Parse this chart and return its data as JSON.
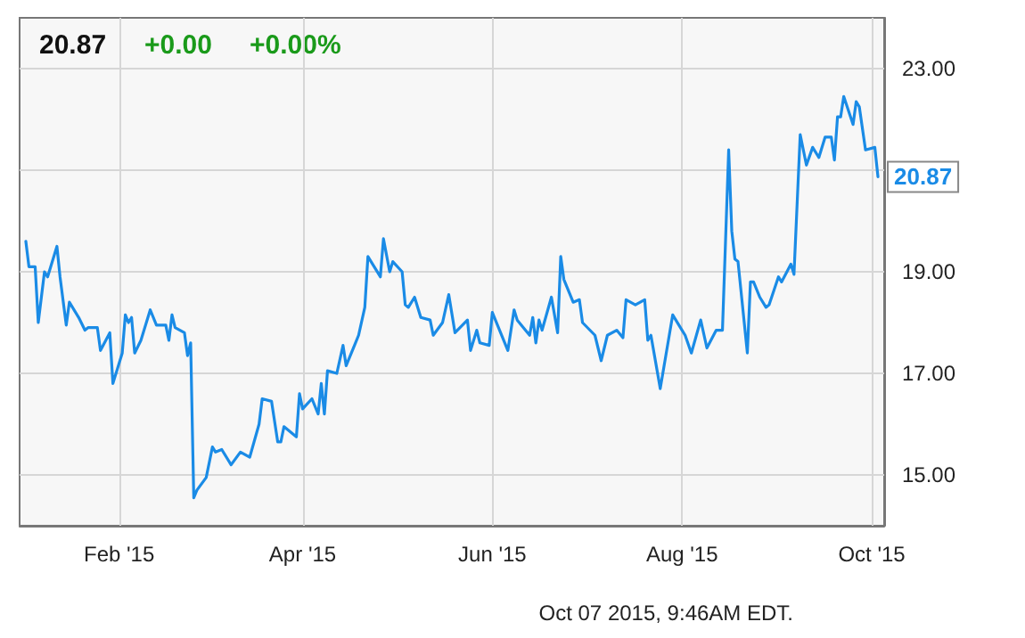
{
  "chart_data": {
    "type": "line",
    "annotations": [
      "20.87",
      "+0.00",
      "+0.00%",
      "Oct 07 2015, 9:46AM EDT.",
      {
        "text": "20.87",
        "x": "2015-10-03",
        "y": 20.87
      }
    ],
    "x": [
      "2015-01-02",
      "2015-01-03",
      "2015-01-05",
      "2015-01-06",
      "2015-01-08",
      "2015-01-09",
      "2015-01-12",
      "2015-01-13",
      "2015-01-15",
      "2015-01-16",
      "2015-01-19",
      "2015-01-21",
      "2015-01-22",
      "2015-01-25",
      "2015-01-26",
      "2015-01-29",
      "2015-01-30",
      "2015-02-02",
      "2015-02-03",
      "2015-02-04",
      "2015-02-05",
      "2015-02-06",
      "2015-02-08",
      "2015-02-11",
      "2015-02-13",
      "2015-02-16",
      "2015-02-17",
      "2015-02-18",
      "2015-02-19",
      "2015-02-22",
      "2015-02-23",
      "2015-02-24",
      "2015-02-25",
      "2015-02-26",
      "2015-03-01",
      "2015-03-03",
      "2015-03-04",
      "2015-03-06",
      "2015-03-09",
      "2015-03-12",
      "2015-03-15",
      "2015-03-18",
      "2015-03-19",
      "2015-03-22",
      "2015-03-24",
      "2015-03-25",
      "2015-03-26",
      "2015-03-30",
      "2015-03-31",
      "2015-04-01",
      "2015-04-04",
      "2015-04-06",
      "2015-04-07",
      "2015-04-08",
      "2015-04-09",
      "2015-04-12",
      "2015-04-14",
      "2015-04-15",
      "2015-04-18",
      "2015-04-19",
      "2015-04-21",
      "2015-04-22",
      "2015-04-26",
      "2015-04-27",
      "2015-04-29",
      "2015-04-30",
      "2015-05-03",
      "2015-05-04",
      "2015-05-05",
      "2015-05-07",
      "2015-05-09",
      "2015-05-12",
      "2015-05-13",
      "2015-05-16",
      "2015-05-18",
      "2015-05-20",
      "2015-05-24",
      "2015-05-25",
      "2015-05-27",
      "2015-05-28",
      "2015-05-31",
      "2015-06-01",
      "2015-06-06",
      "2015-06-08",
      "2015-06-09",
      "2015-06-13",
      "2015-06-14",
      "2015-06-15",
      "2015-06-16",
      "2015-06-17",
      "2015-06-20",
      "2015-06-22",
      "2015-06-23",
      "2015-06-24",
      "2015-06-27",
      "2015-06-29",
      "2015-06-30",
      "2015-07-04",
      "2015-07-06",
      "2015-07-08",
      "2015-07-11",
      "2015-07-13",
      "2015-07-14",
      "2015-07-17",
      "2015-07-20",
      "2015-07-21",
      "2015-07-22",
      "2015-07-25",
      "2015-07-29",
      "2015-07-31",
      "2015-08-02",
      "2015-08-04",
      "2015-08-07",
      "2015-08-09",
      "2015-08-12",
      "2015-08-14",
      "2015-08-16",
      "2015-08-17",
      "2015-08-18",
      "2015-08-19",
      "2015-08-22",
      "2015-08-23",
      "2015-08-24",
      "2015-08-26",
      "2015-08-28",
      "2015-08-29",
      "2015-09-01",
      "2015-09-02",
      "2015-09-05",
      "2015-09-06",
      "2015-09-08",
      "2015-09-10",
      "2015-09-12",
      "2015-09-14",
      "2015-09-16",
      "2015-09-18",
      "2015-09-19",
      "2015-09-20",
      "2015-09-21",
      "2015-09-22",
      "2015-09-25",
      "2015-09-26",
      "2015-09-27",
      "2015-09-29",
      "2015-10-02",
      "2015-10-03"
    ],
    "series": [
      {
        "color": "#1a8be6",
        "values": [
          19.6,
          19.1,
          19.1,
          18.0,
          19.0,
          18.9,
          19.5,
          18.9,
          17.95,
          18.4,
          18.1,
          17.85,
          17.9,
          17.9,
          17.45,
          17.8,
          16.8,
          17.4,
          18.15,
          18.0,
          18.1,
          17.4,
          17.65,
          18.25,
          17.95,
          17.95,
          17.65,
          18.15,
          17.9,
          17.8,
          17.35,
          17.6,
          14.55,
          14.7,
          14.95,
          15.55,
          15.45,
          15.5,
          15.2,
          15.45,
          15.35,
          16.0,
          16.5,
          16.45,
          15.65,
          15.65,
          15.95,
          15.75,
          16.6,
          16.3,
          16.5,
          16.2,
          16.8,
          16.2,
          17.05,
          17.0,
          17.55,
          17.15,
          17.6,
          17.75,
          18.3,
          19.3,
          18.9,
          19.65,
          19.0,
          19.2,
          19.0,
          18.35,
          18.3,
          18.5,
          18.1,
          18.05,
          17.75,
          18.0,
          18.55,
          17.8,
          18.05,
          17.45,
          17.85,
          17.6,
          17.55,
          18.2,
          17.45,
          18.25,
          18.05,
          17.75,
          18.1,
          17.6,
          18.05,
          17.85,
          18.5,
          17.8,
          19.3,
          18.85,
          18.4,
          18.45,
          18.0,
          17.75,
          17.25,
          17.75,
          17.85,
          17.7,
          18.45,
          18.35,
          18.45,
          17.65,
          17.75,
          16.7,
          18.15,
          17.95,
          17.75,
          17.4,
          18.05,
          17.5,
          17.85,
          17.85,
          21.4,
          19.8,
          19.25,
          19.2,
          17.4,
          18.8,
          18.8,
          18.5,
          18.3,
          18.35,
          18.9,
          18.8,
          19.15,
          18.95,
          21.7,
          21.1,
          21.45,
          21.25,
          21.65,
          21.65,
          21.2,
          22.05,
          22.05,
          22.45,
          21.9,
          22.35,
          22.25,
          21.4,
          21.45,
          20.87
        ]
      }
    ],
    "xlim": [
      "2014-12-31",
      "2015-10-05"
    ],
    "xticks": [
      {
        "value": "2015-02-01",
        "label": "Feb '15"
      },
      {
        "value": "2015-04-01",
        "label": "Apr '15"
      },
      {
        "value": "2015-06-01",
        "label": "Jun '15"
      },
      {
        "value": "2015-08-01",
        "label": "Aug '15"
      },
      {
        "value": "2015-10-01",
        "label": "Oct '15"
      }
    ],
    "ylim": [
      14,
      24
    ],
    "yticks": [
      {
        "value": 15,
        "label": "15.00"
      },
      {
        "value": 17,
        "label": "17.00"
      },
      {
        "value": 19,
        "label": "19.00"
      },
      {
        "value": 21,
        "label": null
      },
      {
        "value": 23,
        "label": "23.00"
      }
    ],
    "grid": true,
    "marker": "none",
    "line_style": "solid"
  }
}
